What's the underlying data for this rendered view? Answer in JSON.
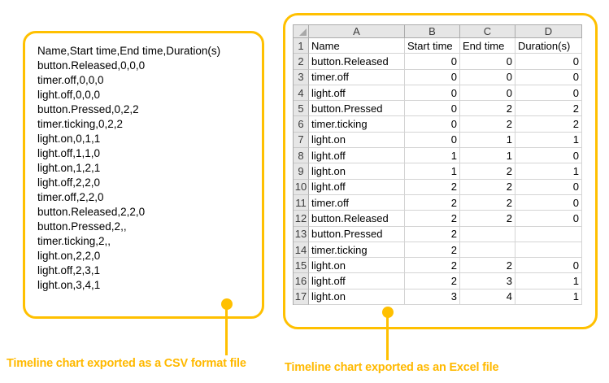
{
  "csv_panel": {
    "caption": "Timeline chart exported as a CSV format file",
    "lines": [
      "Name,Start time,End time,Duration(s)",
      "button.Released,0,0,0",
      "timer.off,0,0,0",
      "light.off,0,0,0",
      "button.Pressed,0,2,2",
      "timer.ticking,0,2,2",
      "light.on,0,1,1",
      "light.off,1,1,0",
      "light.on,1,2,1",
      "light.off,2,2,0",
      "timer.off,2,2,0",
      "button.Released,2,2,0",
      "button.Pressed,2,,",
      "timer.ticking,2,,",
      "light.on,2,2,0",
      "light.off,2,3,1",
      "light.on,3,4,1"
    ]
  },
  "excel_panel": {
    "caption": "Timeline chart exported as an Excel file",
    "column_headers": [
      "A",
      "B",
      "C",
      "D"
    ],
    "rows": [
      {
        "num": "1",
        "a": "Name",
        "b": "Start time",
        "c": "End time",
        "d": "Duration(s)"
      },
      {
        "num": "2",
        "a": "button.Released",
        "b": "0",
        "c": "0",
        "d": "0"
      },
      {
        "num": "3",
        "a": "timer.off",
        "b": "0",
        "c": "0",
        "d": "0"
      },
      {
        "num": "4",
        "a": "light.off",
        "b": "0",
        "c": "0",
        "d": "0"
      },
      {
        "num": "5",
        "a": "button.Pressed",
        "b": "0",
        "c": "2",
        "d": "2"
      },
      {
        "num": "6",
        "a": "timer.ticking",
        "b": "0",
        "c": "2",
        "d": "2"
      },
      {
        "num": "7",
        "a": "light.on",
        "b": "0",
        "c": "1",
        "d": "1"
      },
      {
        "num": "8",
        "a": "light.off",
        "b": "1",
        "c": "1",
        "d": "0"
      },
      {
        "num": "9",
        "a": "light.on",
        "b": "1",
        "c": "2",
        "d": "1"
      },
      {
        "num": "10",
        "a": "light.off",
        "b": "2",
        "c": "2",
        "d": "0"
      },
      {
        "num": "11",
        "a": "timer.off",
        "b": "2",
        "c": "2",
        "d": "0"
      },
      {
        "num": "12",
        "a": "button.Released",
        "b": "2",
        "c": "2",
        "d": "0"
      },
      {
        "num": "13",
        "a": "button.Pressed",
        "b": "2",
        "c": "",
        "d": ""
      },
      {
        "num": "14",
        "a": "timer.ticking",
        "b": "2",
        "c": "",
        "d": ""
      },
      {
        "num": "15",
        "a": "light.on",
        "b": "2",
        "c": "2",
        "d": "0"
      },
      {
        "num": "16",
        "a": "light.off",
        "b": "2",
        "c": "3",
        "d": "1"
      },
      {
        "num": "17",
        "a": "light.on",
        "b": "3",
        "c": "4",
        "d": "1"
      }
    ]
  },
  "colors": {
    "accent": "#FFC000",
    "caption_text": "#FFB900",
    "header_bg": "#E6E6E6",
    "header_border": "#ABABAB",
    "gridline": "#D4D4D4",
    "text": "#000000",
    "header_text": "#3B3B3B",
    "triangle": "#A8A8A8",
    "row_bg": "#FFFFFF"
  }
}
